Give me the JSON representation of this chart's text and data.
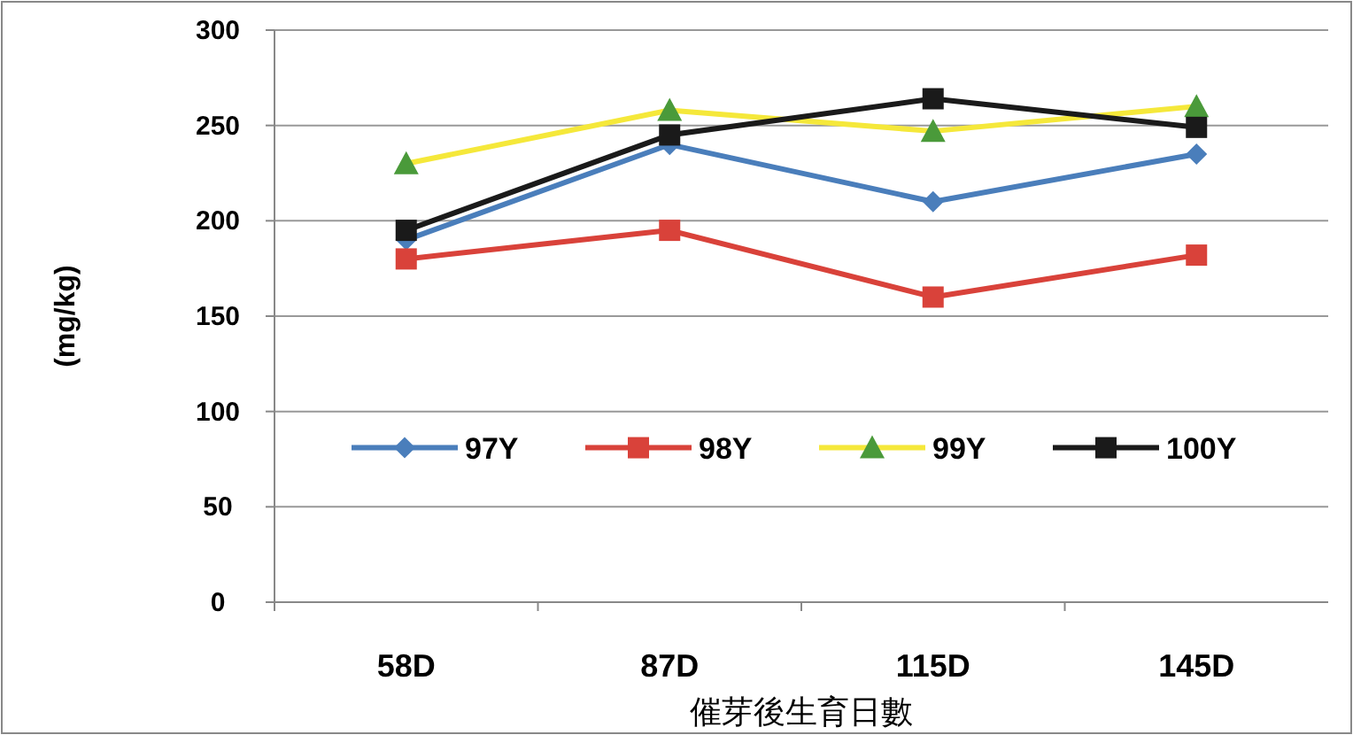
{
  "chart_data": {
    "type": "line",
    "ylabel": "(mg/kg)",
    "xlabel": "催芽後生育日數",
    "categories": [
      "58D",
      "87D",
      "115D",
      "145D"
    ],
    "ylim": [
      0,
      300
    ],
    "yticks": [
      0,
      50,
      100,
      150,
      200,
      250,
      300
    ],
    "grid": "y",
    "legend": "bottom",
    "series": [
      {
        "name": "97Y",
        "color": "#4a7ebb",
        "marker": "diamond",
        "values": [
          190,
          240,
          210,
          235
        ]
      },
      {
        "name": "98Y",
        "color": "#d9423a",
        "marker": "square",
        "values": [
          180,
          195,
          160,
          182
        ]
      },
      {
        "name": "99Y",
        "color": "#f5e83a",
        "marker": "triangle",
        "values": [
          230,
          258,
          247,
          260
        ]
      },
      {
        "name": "100Y",
        "color": "#1a1a1a",
        "marker": "square",
        "values": [
          195,
          245,
          264,
          249
        ]
      }
    ]
  }
}
